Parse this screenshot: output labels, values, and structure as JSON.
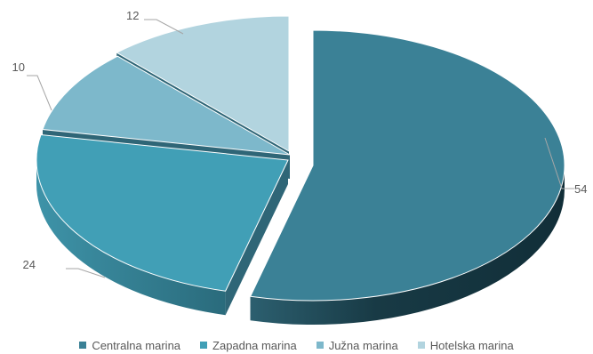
{
  "chart_data": {
    "type": "pie",
    "style": "3d-exploded",
    "categories": [
      "Centralna marina",
      "Zapadna marina",
      "Južna marina",
      "Hotelska marina"
    ],
    "values": [
      54,
      24,
      10,
      12
    ],
    "colors": [
      "#3b8196",
      "#419fb6",
      "#7db8cb",
      "#b2d4df"
    ],
    "data_labels": [
      "54",
      "24",
      "10",
      "12"
    ],
    "legend_position": "bottom"
  }
}
